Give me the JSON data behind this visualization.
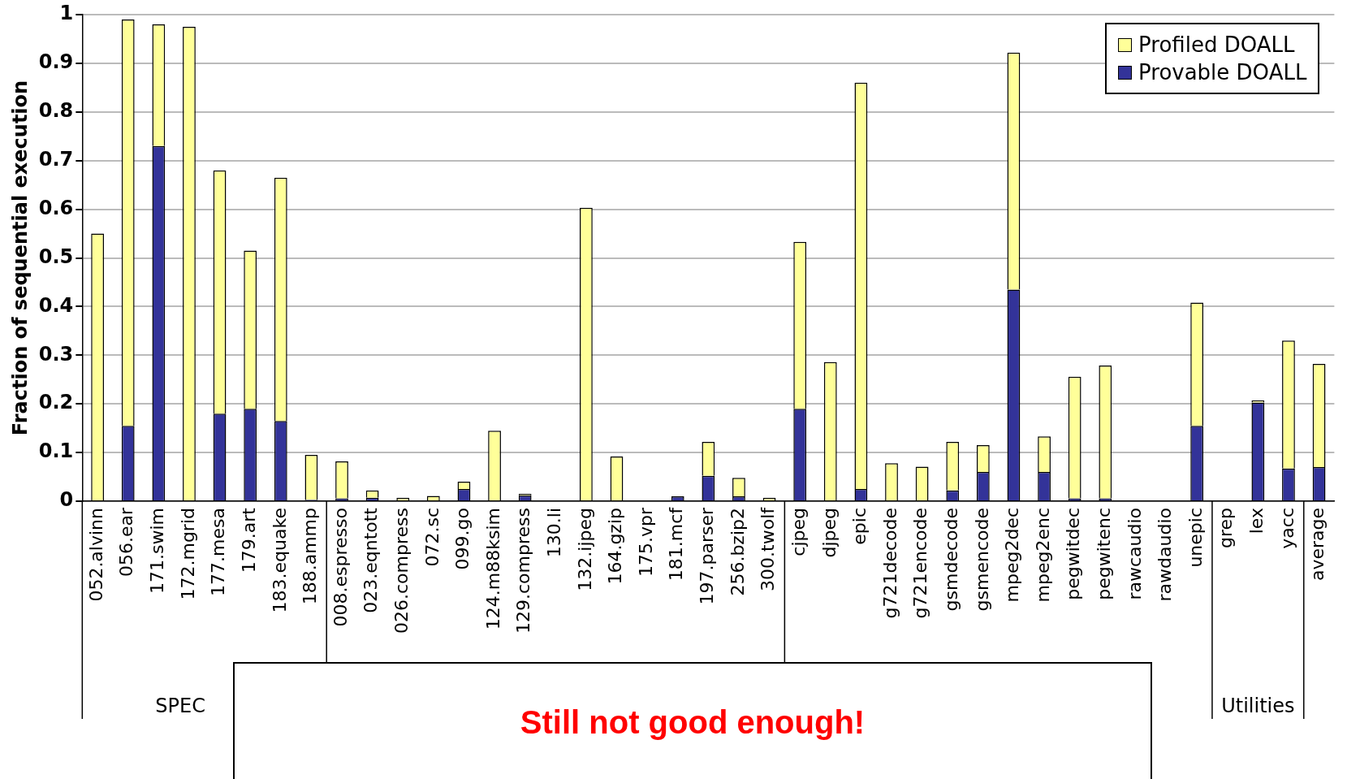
{
  "chart_data": {
    "type": "bar",
    "stacked": true,
    "ylabel": "Fraction of sequential execution",
    "categories": [
      "052.alvinn",
      "056.ear",
      "171.swim",
      "172.mgrid",
      "177.mesa",
      "179.art",
      "183.equake",
      "188.ammp",
      "008.espresso",
      "023.eqntott",
      "026.compress",
      "072.sc",
      "099.go",
      "124.m88ksim",
      "129.compress",
      "130.li",
      "132.ijpeg",
      "164.gzip",
      "175.vpr",
      "181.mcf",
      "197.parser",
      "256.bzip2",
      "300.twolf",
      "cjpeg",
      "djpeg",
      "epic",
      "g721decode",
      "g721encode",
      "gsmdecode",
      "gsmencode",
      "mpeg2dec",
      "mpeg2enc",
      "pegwitdec",
      "pegwitenc",
      "rawcaudio",
      "rawdaudio",
      "unepic",
      "grep",
      "lex",
      "yacc",
      "average"
    ],
    "series": [
      {
        "name": "Provable DOALL",
        "color": "#333399",
        "values": [
          0,
          0.155,
          0.73,
          0,
          0.18,
          0.19,
          0.165,
          0.003,
          0.006,
          0.007,
          0,
          0,
          0.025,
          0,
          0.012,
          0,
          0,
          0,
          0,
          0.01,
          0.052,
          0.01,
          0,
          0.19,
          0,
          0.025,
          0,
          0,
          0.022,
          0.06,
          0.435,
          0.06,
          0.006,
          0.006,
          0,
          0,
          0.155,
          0,
          0.203,
          0.067,
          0.07
        ]
      },
      {
        "name": "Profiled DOALL",
        "color": "#ffff99",
        "values": [
          0.55,
          0.835,
          0.25,
          0.975,
          0.5,
          0.325,
          0.5,
          0.092,
          0.076,
          0.015,
          0.007,
          0.011,
          0.015,
          0.145,
          0.003,
          0,
          0.603,
          0.092,
          0,
          0,
          0.07,
          0.038,
          0.007,
          0.343,
          0.286,
          0.835,
          0.078,
          0.071,
          0.1,
          0.055,
          0.487,
          0.073,
          0.25,
          0.273,
          0,
          0,
          0.253,
          0,
          0.004,
          0.263,
          0.212
        ]
      }
    ],
    "ylim": [
      0,
      1
    ],
    "yticks": [
      0,
      0.1,
      0.2,
      0.3,
      0.4,
      0.5,
      0.6,
      0.7,
      0.8,
      0.9,
      1
    ],
    "grid": "y",
    "legend": "top right",
    "annotations": [
      "SPEC",
      "Utilities",
      "Still not good enough!"
    ]
  }
}
